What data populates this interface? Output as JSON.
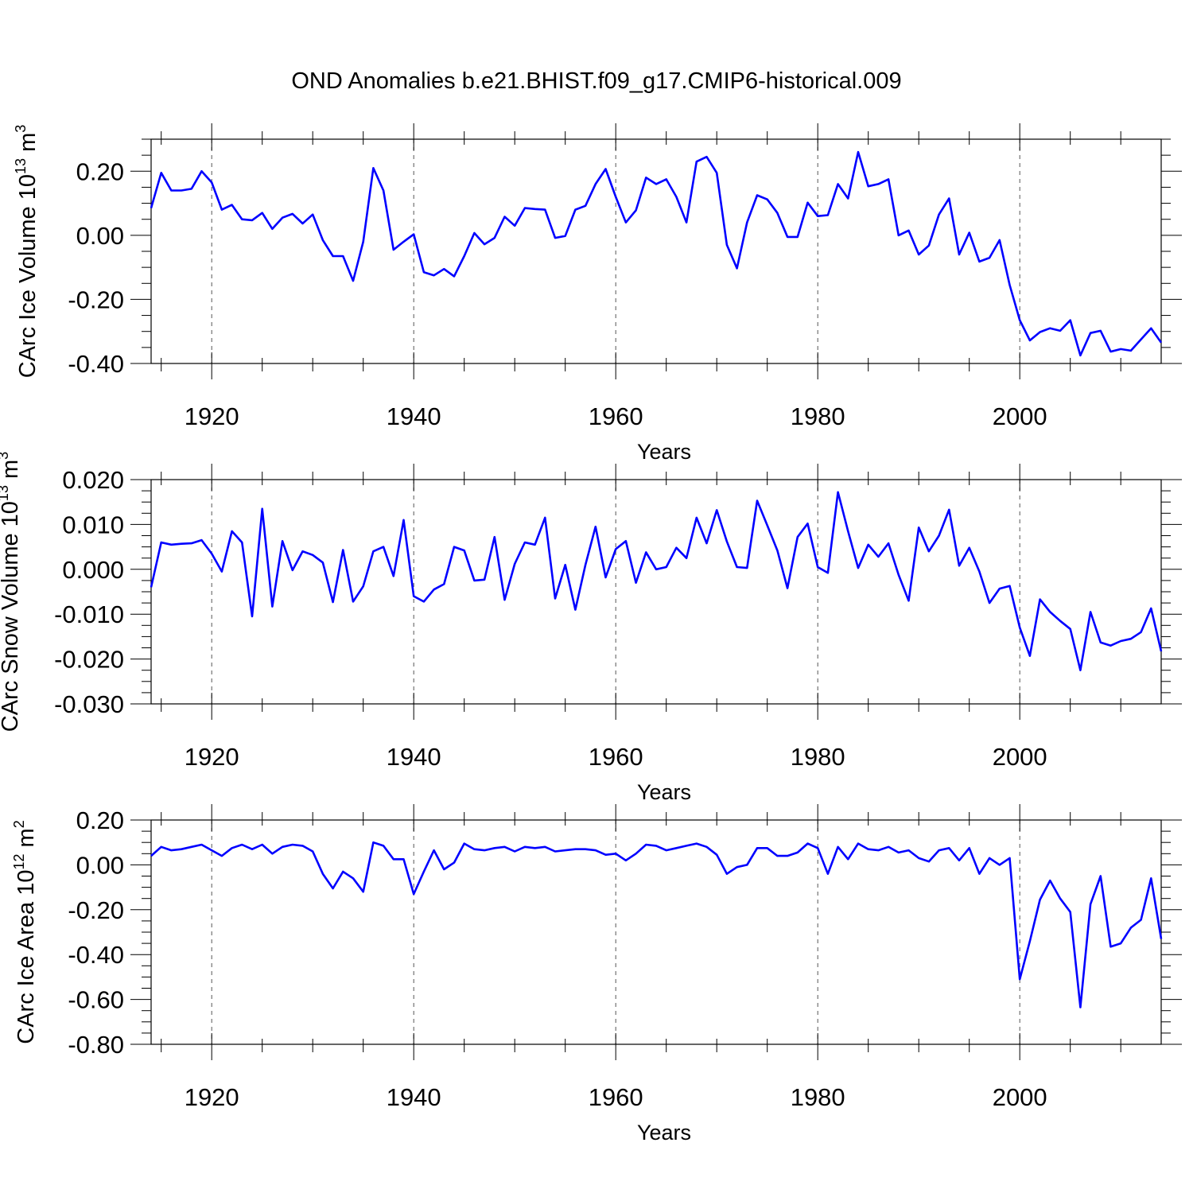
{
  "title": "OND Anomalies b.e21.BHIST.f09_g17.CMIP6-historical.009",
  "line_color": "#0000ff",
  "chart_data": [
    {
      "type": "line",
      "id": "ice-volume",
      "ylabel": "CArc Ice Volume 10",
      "ylabel_exp": "13",
      "ylabel_unit": " m",
      "ylabel_unit_exp": "3",
      "xlabel": "Years",
      "xlim": [
        1914,
        2014
      ],
      "ylim": [
        -0.4,
        0.3
      ],
      "yticks": [
        -0.4,
        -0.2,
        0.0,
        0.2
      ],
      "ytick_labels": [
        "-0.40",
        "-0.20",
        "0.00",
        "0.20"
      ],
      "xticks": [
        1920,
        1940,
        1960,
        1980,
        2000
      ],
      "xtick_labels": [
        "1920",
        "1940",
        "1960",
        "1980",
        "2000"
      ],
      "x_start": 1914,
      "values": [
        0.085,
        0.195,
        0.14,
        0.14,
        0.145,
        0.2,
        0.165,
        0.08,
        0.095,
        0.05,
        0.047,
        0.07,
        0.02,
        0.055,
        0.067,
        0.037,
        0.065,
        -0.015,
        -0.065,
        -0.065,
        -0.142,
        -0.02,
        0.21,
        0.14,
        -0.045,
        -0.02,
        0.003,
        -0.115,
        -0.125,
        -0.105,
        -0.128,
        -0.065,
        0.007,
        -0.028,
        -0.008,
        0.058,
        0.03,
        0.085,
        0.082,
        0.08,
        -0.008,
        -0.002,
        0.08,
        0.092,
        0.16,
        0.207,
        0.12,
        0.04,
        0.078,
        0.18,
        0.16,
        0.175,
        0.12,
        0.04,
        0.23,
        0.245,
        0.195,
        -0.03,
        -0.103,
        0.04,
        0.125,
        0.112,
        0.07,
        -0.005,
        -0.005,
        0.102,
        0.06,
        0.063,
        0.16,
        0.115,
        0.26,
        0.153,
        0.16,
        0.175,
        0.0,
        0.015,
        -0.06,
        -0.032,
        0.065,
        0.115,
        -0.06,
        0.008,
        -0.082,
        -0.07,
        -0.015,
        -0.155,
        -0.265,
        -0.328,
        -0.302,
        -0.29,
        -0.298,
        -0.265,
        -0.375,
        -0.305,
        -0.298,
        -0.363,
        -0.355,
        -0.36,
        -0.325,
        -0.29,
        -0.335
      ]
    },
    {
      "type": "line",
      "id": "snow-volume",
      "ylabel": "CArc Snow Volume 10",
      "ylabel_exp": "13",
      "ylabel_unit": " m",
      "ylabel_unit_exp": "3",
      "xlabel": "Years",
      "xlim": [
        1914,
        2014
      ],
      "ylim": [
        -0.03,
        0.02
      ],
      "yticks": [
        -0.03,
        -0.02,
        -0.01,
        0.0,
        0.01,
        0.02
      ],
      "ytick_labels": [
        "-0.030",
        "-0.020",
        "-0.010",
        "0.000",
        "0.010",
        "0.020"
      ],
      "xticks": [
        1920,
        1940,
        1960,
        1980,
        2000
      ],
      "xtick_labels": [
        "1920",
        "1940",
        "1960",
        "1980",
        "2000"
      ],
      "x_start": 1914,
      "values": [
        -0.004,
        0.006,
        0.0055,
        0.0057,
        0.0058,
        0.0065,
        0.0035,
        -0.0005,
        0.0085,
        0.006,
        -0.0105,
        0.0135,
        -0.0083,
        0.0063,
        -0.0002,
        0.004,
        0.0032,
        0.0015,
        -0.0073,
        0.0043,
        -0.0072,
        -0.0038,
        0.004,
        0.005,
        -0.0015,
        0.011,
        -0.006,
        -0.0072,
        -0.0045,
        -0.0033,
        0.005,
        0.0042,
        -0.0025,
        -0.0023,
        0.0072,
        -0.0068,
        0.0012,
        0.006,
        0.0055,
        0.0115,
        -0.0065,
        0.001,
        -0.009,
        0.001,
        0.0095,
        -0.0018,
        0.0045,
        0.0063,
        -0.003,
        0.0038,
        0.0,
        0.0005,
        0.0048,
        0.0025,
        0.0115,
        0.0058,
        0.0132,
        0.0062,
        0.0005,
        0.0003,
        0.0153,
        0.0098,
        0.0042,
        -0.0042,
        0.0072,
        0.0102,
        0.0005,
        -0.0008,
        0.0172,
        0.0085,
        0.0003,
        0.0055,
        0.0028,
        0.0058,
        -0.0012,
        -0.007,
        0.0093,
        0.004,
        0.0075,
        0.0133,
        0.0008,
        0.0048,
        -0.0005,
        -0.0075,
        -0.0043,
        -0.0037,
        -0.013,
        -0.0193,
        -0.0067,
        -0.0095,
        -0.0115,
        -0.0133,
        -0.0225,
        -0.0095,
        -0.0163,
        -0.017,
        -0.016,
        -0.0155,
        -0.014,
        -0.0087,
        -0.0183
      ]
    },
    {
      "type": "line",
      "id": "ice-area",
      "ylabel": "CArc Ice Area 10",
      "ylabel_exp": "12",
      "ylabel_unit": " m",
      "ylabel_unit_exp": "2",
      "xlabel": "Years",
      "xlim": [
        1914,
        2014
      ],
      "ylim": [
        -0.8,
        0.2
      ],
      "yticks": [
        -0.8,
        -0.6,
        -0.4,
        -0.2,
        0.0,
        0.2
      ],
      "ytick_labels": [
        "-0.80",
        "-0.60",
        "-0.40",
        "-0.20",
        "0.00",
        "0.20"
      ],
      "xticks": [
        1920,
        1940,
        1960,
        1980,
        2000
      ],
      "xtick_labels": [
        "1920",
        "1940",
        "1960",
        "1980",
        "2000"
      ],
      "x_start": 1914,
      "values": [
        0.04,
        0.08,
        0.065,
        0.07,
        0.08,
        0.09,
        0.065,
        0.04,
        0.075,
        0.09,
        0.07,
        0.09,
        0.05,
        0.08,
        0.09,
        0.085,
        0.06,
        -0.04,
        -0.105,
        -0.03,
        -0.06,
        -0.12,
        0.1,
        0.085,
        0.025,
        0.025,
        -0.13,
        -0.03,
        0.065,
        -0.02,
        0.01,
        0.095,
        0.07,
        0.065,
        0.075,
        0.08,
        0.06,
        0.08,
        0.075,
        0.08,
        0.06,
        0.065,
        0.07,
        0.07,
        0.065,
        0.045,
        0.05,
        0.02,
        0.05,
        0.09,
        0.085,
        0.065,
        0.075,
        0.085,
        0.095,
        0.08,
        0.045,
        -0.04,
        -0.01,
        0.0,
        0.075,
        0.075,
        0.04,
        0.04,
        0.055,
        0.095,
        0.075,
        -0.04,
        0.08,
        0.025,
        0.095,
        0.07,
        0.065,
        0.08,
        0.055,
        0.065,
        0.03,
        0.015,
        0.065,
        0.075,
        0.02,
        0.075,
        -0.04,
        0.03,
        0.0,
        0.03,
        -0.51,
        -0.34,
        -0.155,
        -0.07,
        -0.15,
        -0.21,
        -0.635,
        -0.175,
        -0.05,
        -0.365,
        -0.35,
        -0.28,
        -0.245,
        -0.06,
        -0.33
      ]
    }
  ]
}
